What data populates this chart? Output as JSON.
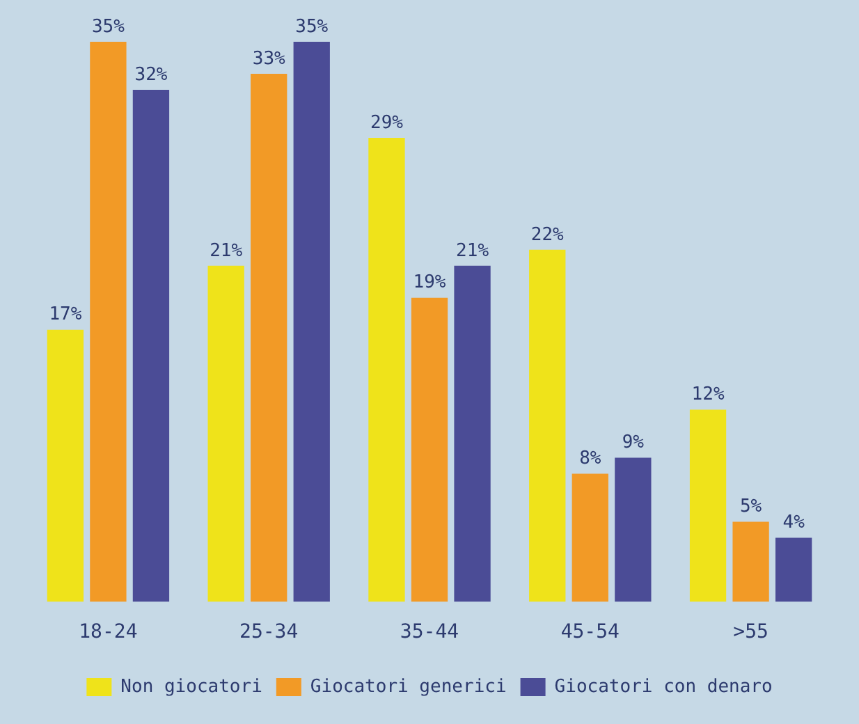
{
  "chart_data": {
    "type": "bar",
    "categories": [
      "18-24",
      "25-34",
      "35-44",
      "45-54",
      ">55"
    ],
    "series": [
      {
        "name": "Non giocatori",
        "color": "#efe31a",
        "values": [
          17,
          21,
          29,
          22,
          12
        ],
        "value_labels": [
          "17%",
          "21%",
          "29%",
          "22%",
          "12%"
        ]
      },
      {
        "name": "Giocatori generici",
        "color": "#f29a26",
        "values": [
          35,
          33,
          19,
          8,
          5
        ],
        "value_labels": [
          "35%",
          "33%",
          "19%",
          "8%",
          "5%"
        ]
      },
      {
        "name": "Giocatori con denaro",
        "color": "#4b4c96",
        "values": [
          32,
          35,
          21,
          9,
          4
        ],
        "value_labels": [
          "32%",
          "35%",
          "21%",
          "9%",
          "4%"
        ]
      }
    ],
    "legend": "bottom",
    "grid": false
  }
}
